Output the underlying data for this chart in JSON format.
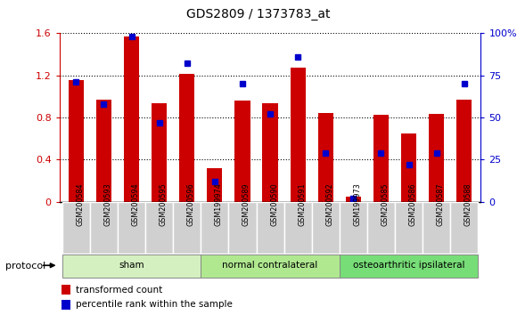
{
  "title": "GDS2809 / 1373783_at",
  "samples": [
    "GSM200584",
    "GSM200593",
    "GSM200594",
    "GSM200595",
    "GSM200596",
    "GSM199974",
    "GSM200589",
    "GSM200590",
    "GSM200591",
    "GSM200592",
    "GSM199973",
    "GSM200585",
    "GSM200586",
    "GSM200587",
    "GSM200588"
  ],
  "red_values": [
    1.15,
    0.97,
    1.57,
    0.93,
    1.21,
    0.32,
    0.96,
    0.93,
    1.27,
    0.84,
    0.05,
    0.82,
    0.65,
    0.83,
    0.97
  ],
  "blue_pct": [
    71,
    58,
    98,
    47,
    82,
    12,
    70,
    52,
    86,
    29,
    2,
    29,
    22,
    29,
    70
  ],
  "groups": [
    {
      "label": "sham",
      "start": 0,
      "end": 5
    },
    {
      "label": "normal contralateral",
      "start": 5,
      "end": 10
    },
    {
      "label": "osteoarthritic ipsilateral",
      "start": 10,
      "end": 15
    }
  ],
  "group_colors": [
    "#d4f0c0",
    "#b0e890",
    "#77dd77"
  ],
  "ylim_left": [
    0,
    1.6
  ],
  "ylim_right": [
    0,
    100
  ],
  "left_ticks": [
    0,
    0.4,
    0.8,
    1.2,
    1.6
  ],
  "right_ticks": [
    0,
    25,
    50,
    75,
    100
  ],
  "left_tick_labels": [
    "0",
    "0.4",
    "0.8",
    "1.2",
    "1.6"
  ],
  "right_tick_labels": [
    "0",
    "25",
    "50",
    "75",
    "100%"
  ],
  "left_color": "#cc0000",
  "right_color": "#0000cc",
  "bar_width": 0.55,
  "blue_marker_size": 5,
  "legend_red": "transformed count",
  "legend_blue": "percentile rank within the sample",
  "protocol_label": "protocol",
  "plot_bg": "#ffffff",
  "tick_bg": "#d0d0d0"
}
